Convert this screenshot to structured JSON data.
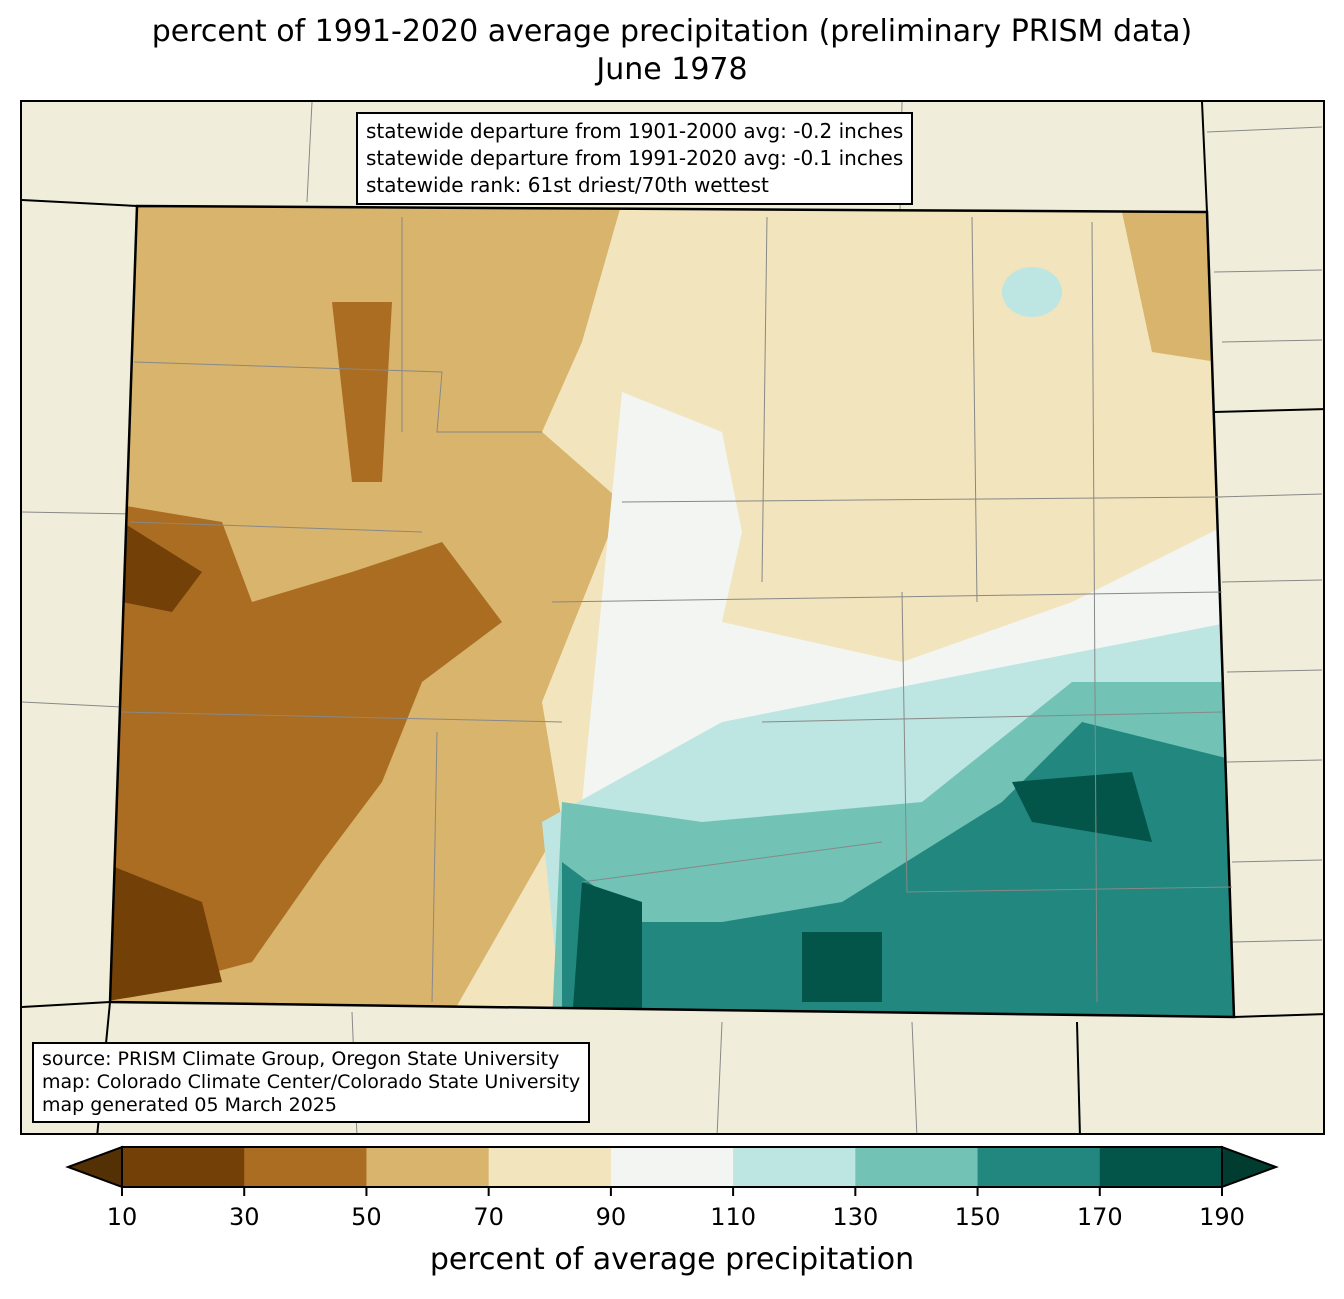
{
  "title": {
    "line1": "percent of 1991-2020 average precipitation (preliminary PRISM data)",
    "line2": "June 1978"
  },
  "stats": {
    "line1": "statewide departure from 1901-2000 avg: -0.2 inches",
    "line2": "statewide departure from 1991-2020 avg: -0.1 inches",
    "line3": "statewide rank: 61st driest/70th wettest"
  },
  "credits": {
    "line1": "source: PRISM Climate Group, Oregon State University",
    "line2": "map: Colorado Climate Center/Colorado State University",
    "line3": "map generated 05 March 2025"
  },
  "colorbar": {
    "label": "percent of average precipitation",
    "ticks": [
      "10",
      "30",
      "50",
      "70",
      "90",
      "110",
      "130",
      "150",
      "170",
      "190"
    ],
    "under_color": "#543005",
    "over_color": "#003c30",
    "colors": [
      "#734008",
      "#ab6d22",
      "#d9b46d",
      "#f2e4bc",
      "#f3f5f3",
      "#bde6e2",
      "#72c3b6",
      "#21877f",
      "#035449"
    ]
  }
}
